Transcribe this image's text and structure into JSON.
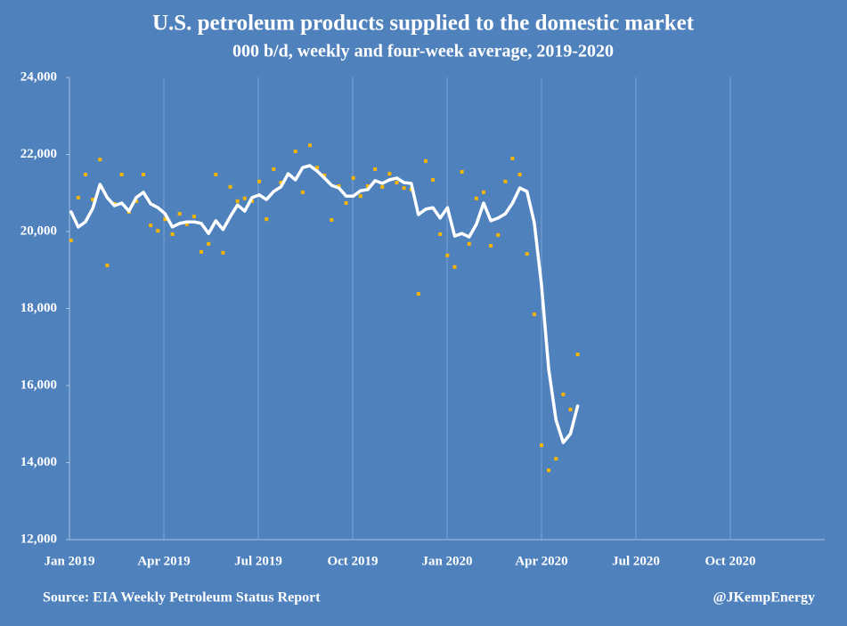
{
  "chart_data": {
    "type": "line",
    "title": "U.S. petroleum products supplied to the domestic market",
    "subtitle": "000 b/d, weekly and four-week average, 2019-2020",
    "source": "Source: EIA Weekly Petroleum Status Report",
    "credit": "@JKempEnergy",
    "grid": "x",
    "xlim": [
      0,
      24
    ],
    "xticks": [
      {
        "value": 0,
        "label": "Jan 2019"
      },
      {
        "value": 3,
        "label": "Apr 2019"
      },
      {
        "value": 6,
        "label": "Jul 2019"
      },
      {
        "value": 9,
        "label": "Oct 2019"
      },
      {
        "value": 12,
        "label": "Jan 2020"
      },
      {
        "value": 15,
        "label": "Apr 2020"
      },
      {
        "value": 18,
        "label": "Jul 2020"
      },
      {
        "value": 21,
        "label": "Oct 2020"
      }
    ],
    "ylim": [
      12000,
      24000
    ],
    "yticks": [
      {
        "value": 12000,
        "label": "12,000"
      },
      {
        "value": 14000,
        "label": "14,000"
      },
      {
        "value": 16000,
        "label": "16,000"
      },
      {
        "value": 18000,
        "label": "18,000"
      },
      {
        "value": 20000,
        "label": "20,000"
      },
      {
        "value": 22000,
        "label": "22,000"
      },
      {
        "value": 24000,
        "label": "24,000"
      }
    ],
    "x": [
      0.05,
      0.28,
      0.51,
      0.74,
      0.97,
      1.2,
      1.43,
      1.66,
      1.89,
      2.12,
      2.35,
      2.58,
      2.81,
      3.04,
      3.27,
      3.5,
      3.73,
      3.96,
      4.19,
      4.42,
      4.65,
      4.88,
      5.11,
      5.34,
      5.57,
      5.8,
      6.03,
      6.26,
      6.49,
      6.72,
      6.95,
      7.18,
      7.41,
      7.64,
      7.87,
      8.1,
      8.33,
      8.56,
      8.79,
      9.02,
      9.25,
      9.48,
      9.71,
      9.94,
      10.17,
      10.4,
      10.63,
      10.86,
      11.09,
      11.32,
      11.55,
      11.78,
      12.01,
      12.24,
      12.47,
      12.7,
      12.93,
      13.16,
      13.39,
      13.62,
      13.85,
      14.08,
      14.31,
      14.54,
      14.77,
      15.0,
      15.23,
      15.46,
      15.69,
      15.92,
      16.15
    ],
    "series": [
      {
        "kind": "scatter",
        "color": "#f7b500",
        "values": [
          19770,
          20880,
          21480,
          20830,
          21870,
          19120,
          20720,
          21480,
          20510,
          20790,
          21480,
          20160,
          20020,
          20320,
          19930,
          20460,
          20190,
          20390,
          19470,
          19680,
          21480,
          19450,
          21160,
          20790,
          20860,
          20790,
          21300,
          20320,
          21620,
          21270,
          21480,
          22080,
          21020,
          22240,
          21660,
          21460,
          20300,
          21180,
          20740,
          21390,
          20920,
          21180,
          21620,
          21160,
          21500,
          21270,
          21130,
          21090,
          18380,
          21830,
          21340,
          19930,
          19380,
          19080,
          21550,
          19680,
          20860,
          21020,
          19630,
          19910,
          21300,
          21900,
          21480,
          19420,
          17850,
          14450,
          13800,
          14100,
          15770,
          15380,
          16810
        ]
      },
      {
        "kind": "line",
        "color": "#ffffff",
        "values": [
          20510,
          20116,
          20255,
          20600,
          21226,
          20880,
          20670,
          20740,
          20530,
          20880,
          21020,
          20720,
          20620,
          20460,
          20120,
          20210,
          20250,
          20250,
          20210,
          19950,
          20280,
          20050,
          20390,
          20690,
          20530,
          20880,
          20950,
          20830,
          21040,
          21160,
          21500,
          21340,
          21660,
          21710,
          21570,
          21390,
          21200,
          21130,
          20920,
          20920,
          21060,
          21090,
          21320,
          21250,
          21340,
          21390,
          21270,
          21250,
          20440,
          20580,
          20620,
          20350,
          20620,
          19880,
          19950,
          19860,
          20190,
          20740,
          20280,
          20350,
          20460,
          20740,
          21130,
          21040,
          20230,
          18610,
          16420,
          15100,
          14520,
          14750,
          15470
        ]
      }
    ]
  }
}
